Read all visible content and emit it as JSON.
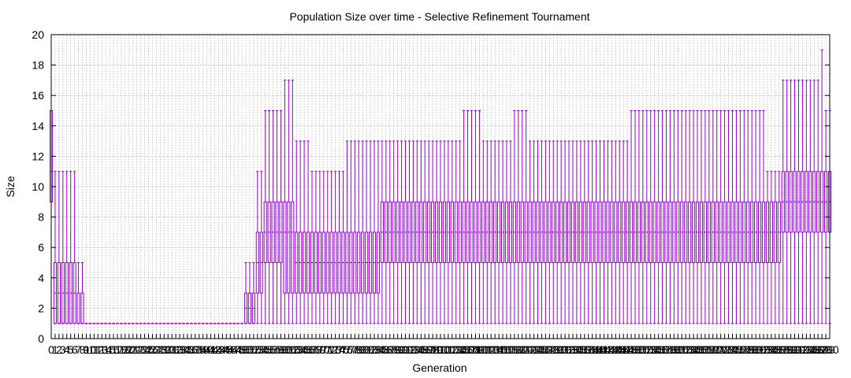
{
  "chart_data": {
    "type": "boxplot",
    "title": "Population Size over time - Selective Refinement Tournament",
    "xlabel": "Generation",
    "ylabel": "Size",
    "xlim": [
      0,
      200
    ],
    "ylim": [
      0,
      20
    ],
    "yticks": [
      0,
      2,
      4,
      6,
      8,
      10,
      12,
      14,
      16,
      18,
      20
    ],
    "grid": true,
    "legend": "none",
    "color": "#9400d3",
    "segments": [
      {
        "from": 0,
        "to": 0,
        "min": 9,
        "q1": 9,
        "median": 11,
        "q3": 15,
        "max": 15
      },
      {
        "from": 1,
        "to": 4,
        "min": 1,
        "q1": 1,
        "median": 3,
        "q3": 5,
        "max": 11
      },
      {
        "from": 5,
        "to": 6,
        "min": 1,
        "q1": 1,
        "median": 3,
        "q3": 5,
        "max": 11
      },
      {
        "from": 7,
        "to": 8,
        "min": 1,
        "q1": 1,
        "median": 1,
        "q3": 3,
        "max": 5
      },
      {
        "from": 9,
        "to": 49,
        "min": 1,
        "q1": 1,
        "median": 1,
        "q3": 1,
        "max": 1
      },
      {
        "from": 50,
        "to": 52,
        "min": 1,
        "q1": 1,
        "median": 2,
        "q3": 3,
        "max": 5
      },
      {
        "from": 53,
        "to": 54,
        "min": 1,
        "q1": 3,
        "median": 5,
        "q3": 7,
        "max": 11
      },
      {
        "from": 55,
        "to": 59,
        "min": 1,
        "q1": 5,
        "median": 7,
        "q3": 9,
        "max": 15
      },
      {
        "from": 60,
        "to": 62,
        "min": 1,
        "q1": 3,
        "median": 7,
        "q3": 9,
        "max": 17
      },
      {
        "from": 63,
        "to": 66,
        "min": 1,
        "q1": 3,
        "median": 5,
        "q3": 7,
        "max": 13
      },
      {
        "from": 67,
        "to": 75,
        "min": 1,
        "q1": 3,
        "median": 5,
        "q3": 7,
        "max": 11
      },
      {
        "from": 76,
        "to": 84,
        "min": 1,
        "q1": 3,
        "median": 5,
        "q3": 7,
        "max": 13
      },
      {
        "from": 85,
        "to": 89,
        "min": 1,
        "q1": 5,
        "median": 7,
        "q3": 9,
        "max": 13
      },
      {
        "from": 90,
        "to": 105,
        "min": 1,
        "q1": 5,
        "median": 7,
        "q3": 9,
        "max": 13
      },
      {
        "from": 106,
        "to": 110,
        "min": 1,
        "q1": 5,
        "median": 7,
        "q3": 9,
        "max": 15
      },
      {
        "from": 111,
        "to": 118,
        "min": 1,
        "q1": 5,
        "median": 7,
        "q3": 9,
        "max": 13
      },
      {
        "from": 119,
        "to": 122,
        "min": 1,
        "q1": 5,
        "median": 7,
        "q3": 9,
        "max": 15
      },
      {
        "from": 123,
        "to": 148,
        "min": 1,
        "q1": 5,
        "median": 7,
        "q3": 9,
        "max": 13
      },
      {
        "from": 149,
        "to": 170,
        "min": 1,
        "q1": 5,
        "median": 7,
        "q3": 9,
        "max": 15
      },
      {
        "from": 171,
        "to": 176,
        "min": 1,
        "q1": 5,
        "median": 7,
        "q3": 9,
        "max": 15
      },
      {
        "from": 177,
        "to": 183,
        "min": 1,
        "q1": 5,
        "median": 7,
        "q3": 9,
        "max": 15
      },
      {
        "from": 184,
        "to": 187,
        "min": 1,
        "q1": 5,
        "median": 7,
        "q3": 9,
        "max": 11
      },
      {
        "from": 188,
        "to": 191,
        "min": 1,
        "q1": 7,
        "median": 9,
        "q3": 11,
        "max": 17
      },
      {
        "from": 192,
        "to": 197,
        "min": 1,
        "q1": 7,
        "median": 9,
        "q3": 11,
        "max": 17
      },
      {
        "from": 198,
        "to": 198,
        "min": 1,
        "q1": 7,
        "median": 9,
        "q3": 11,
        "max": 19
      },
      {
        "from": 199,
        "to": 200,
        "min": 1,
        "q1": 7,
        "median": 9,
        "q3": 11,
        "max": 15
      }
    ]
  }
}
